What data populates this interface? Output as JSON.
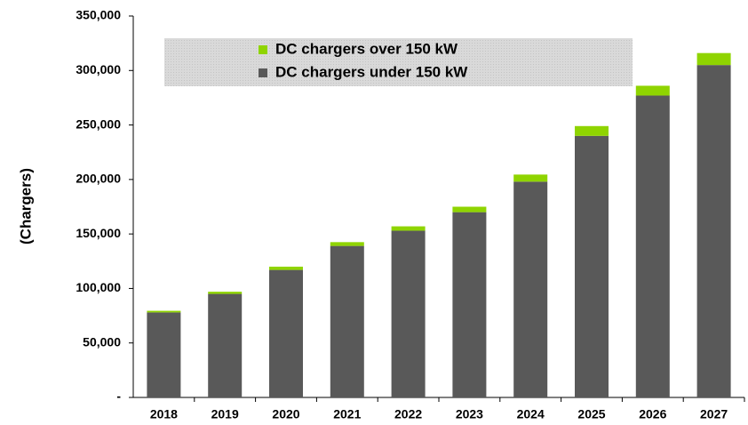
{
  "chart_data": {
    "type": "stacked_bar",
    "ylabel": "(Chargers)",
    "categories": [
      "2018",
      "2019",
      "2020",
      "2021",
      "2022",
      "2023",
      "2024",
      "2025",
      "2026",
      "2027"
    ],
    "series": [
      {
        "name": "DC chargers under 150 kW",
        "color": "#595959",
        "values": [
          78000,
          95000,
          117000,
          139000,
          153000,
          170000,
          198000,
          240000,
          277000,
          305000
        ]
      },
      {
        "name": "DC chargers over 150 kW",
        "color": "#8fd400",
        "values": [
          1500,
          2000,
          3000,
          3500,
          4000,
          5000,
          6500,
          9000,
          9000,
          11000
        ]
      }
    ],
    "ylim": [
      0,
      350000
    ],
    "yticks": [
      {
        "value": 0,
        "label": "-"
      },
      {
        "value": 50000,
        "label": "50,000"
      },
      {
        "value": 100000,
        "label": "100,000"
      },
      {
        "value": 150000,
        "label": "150,000"
      },
      {
        "value": 200000,
        "label": "200,000"
      },
      {
        "value": 250000,
        "label": "250,000"
      },
      {
        "value": 300000,
        "label": "300,000"
      },
      {
        "value": 350000,
        "label": "350,000"
      }
    ],
    "legend": "top-left"
  }
}
